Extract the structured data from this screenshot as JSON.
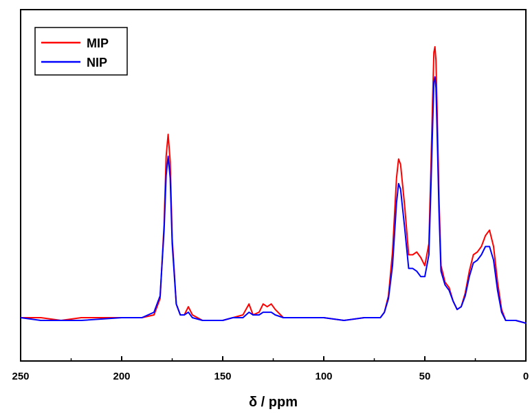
{
  "chart_data": {
    "type": "line",
    "title": "",
    "xlabel": "δ / ppm",
    "ylabel": "",
    "xlim": [
      250,
      0
    ],
    "x_reversed": true,
    "y_axis_visible": false,
    "grid": false,
    "legend_position": "top-left",
    "xticks": [
      250,
      200,
      150,
      100,
      50,
      0
    ],
    "series": [
      {
        "name": "MIP",
        "color": "#ff0000",
        "points": [
          [
            250,
            0.01
          ],
          [
            240,
            0.01
          ],
          [
            230,
            0.0
          ],
          [
            220,
            0.01
          ],
          [
            200,
            0.01
          ],
          [
            190,
            0.01
          ],
          [
            184,
            0.02
          ],
          [
            181,
            0.08
          ],
          [
            179,
            0.35
          ],
          [
            178,
            0.6
          ],
          [
            177,
            0.68
          ],
          [
            176,
            0.58
          ],
          [
            175,
            0.3
          ],
          [
            173,
            0.06
          ],
          [
            171,
            0.02
          ],
          [
            169,
            0.02
          ],
          [
            167,
            0.05
          ],
          [
            165,
            0.02
          ],
          [
            160,
            0.0
          ],
          [
            150,
            0.0
          ],
          [
            145,
            0.01
          ],
          [
            140,
            0.02
          ],
          [
            137,
            0.06
          ],
          [
            135,
            0.02
          ],
          [
            132,
            0.03
          ],
          [
            130,
            0.06
          ],
          [
            128,
            0.05
          ],
          [
            126,
            0.06
          ],
          [
            124,
            0.04
          ],
          [
            120,
            0.01
          ],
          [
            110,
            0.01
          ],
          [
            100,
            0.01
          ],
          [
            90,
            0.0
          ],
          [
            80,
            0.01
          ],
          [
            72,
            0.01
          ],
          [
            70,
            0.03
          ],
          [
            68,
            0.09
          ],
          [
            66,
            0.25
          ],
          [
            64,
            0.52
          ],
          [
            63,
            0.59
          ],
          [
            62,
            0.57
          ],
          [
            60,
            0.42
          ],
          [
            58,
            0.24
          ],
          [
            56,
            0.24
          ],
          [
            54,
            0.25
          ],
          [
            52,
            0.23
          ],
          [
            50,
            0.2
          ],
          [
            48,
            0.28
          ],
          [
            47,
            0.55
          ],
          [
            46,
            0.85
          ],
          [
            45.5,
            0.98
          ],
          [
            45,
            1.0
          ],
          [
            44.5,
            0.95
          ],
          [
            44,
            0.8
          ],
          [
            43,
            0.45
          ],
          [
            42,
            0.2
          ],
          [
            40,
            0.14
          ],
          [
            38,
            0.12
          ],
          [
            36,
            0.07
          ],
          [
            34,
            0.04
          ],
          [
            32,
            0.05
          ],
          [
            30,
            0.1
          ],
          [
            28,
            0.18
          ],
          [
            26,
            0.24
          ],
          [
            24,
            0.25
          ],
          [
            22,
            0.27
          ],
          [
            20,
            0.31
          ],
          [
            18,
            0.33
          ],
          [
            16,
            0.27
          ],
          [
            14,
            0.14
          ],
          [
            12,
            0.04
          ],
          [
            10,
            0.0
          ],
          [
            5,
            0.0
          ],
          [
            0,
            -0.01
          ]
        ]
      },
      {
        "name": "NIP",
        "color": "#0000ff",
        "points": [
          [
            250,
            0.01
          ],
          [
            240,
            0.0
          ],
          [
            230,
            0.0
          ],
          [
            220,
            0.0
          ],
          [
            200,
            0.01
          ],
          [
            190,
            0.01
          ],
          [
            184,
            0.03
          ],
          [
            181,
            0.09
          ],
          [
            179,
            0.33
          ],
          [
            178,
            0.53
          ],
          [
            177,
            0.6
          ],
          [
            176,
            0.52
          ],
          [
            175,
            0.28
          ],
          [
            173,
            0.06
          ],
          [
            171,
            0.02
          ],
          [
            169,
            0.02
          ],
          [
            167,
            0.03
          ],
          [
            165,
            0.01
          ],
          [
            160,
            0.0
          ],
          [
            150,
            0.0
          ],
          [
            145,
            0.01
          ],
          [
            140,
            0.01
          ],
          [
            137,
            0.03
          ],
          [
            135,
            0.02
          ],
          [
            132,
            0.02
          ],
          [
            130,
            0.03
          ],
          [
            128,
            0.03
          ],
          [
            126,
            0.03
          ],
          [
            124,
            0.02
          ],
          [
            120,
            0.01
          ],
          [
            110,
            0.01
          ],
          [
            100,
            0.01
          ],
          [
            90,
            0.0
          ],
          [
            80,
            0.01
          ],
          [
            72,
            0.01
          ],
          [
            70,
            0.03
          ],
          [
            68,
            0.08
          ],
          [
            66,
            0.2
          ],
          [
            64,
            0.43
          ],
          [
            63,
            0.5
          ],
          [
            62,
            0.48
          ],
          [
            60,
            0.34
          ],
          [
            58,
            0.19
          ],
          [
            56,
            0.19
          ],
          [
            54,
            0.18
          ],
          [
            52,
            0.16
          ],
          [
            50,
            0.16
          ],
          [
            48,
            0.24
          ],
          [
            47,
            0.48
          ],
          [
            46,
            0.75
          ],
          [
            45.5,
            0.87
          ],
          [
            45,
            0.89
          ],
          [
            44.5,
            0.85
          ],
          [
            44,
            0.72
          ],
          [
            43,
            0.4
          ],
          [
            42,
            0.18
          ],
          [
            40,
            0.13
          ],
          [
            38,
            0.11
          ],
          [
            36,
            0.07
          ],
          [
            34,
            0.04
          ],
          [
            32,
            0.05
          ],
          [
            30,
            0.09
          ],
          [
            28,
            0.16
          ],
          [
            26,
            0.21
          ],
          [
            24,
            0.22
          ],
          [
            22,
            0.24
          ],
          [
            20,
            0.27
          ],
          [
            18,
            0.27
          ],
          [
            16,
            0.22
          ],
          [
            14,
            0.11
          ],
          [
            12,
            0.03
          ],
          [
            10,
            0.0
          ],
          [
            5,
            0.0
          ],
          [
            0,
            -0.01
          ]
        ]
      }
    ]
  }
}
